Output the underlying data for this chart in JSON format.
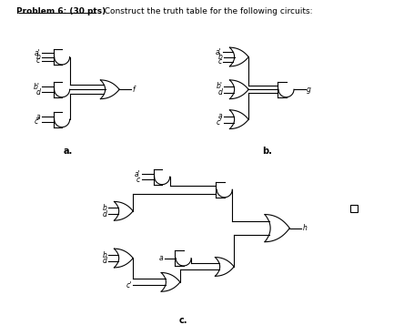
{
  "title1": "Problem 6: (30 pts)",
  "title2": "  Construct the truth table for the following circuits:",
  "bg_color": "#ffffff",
  "line_color": "#000000",
  "circuit_a_label": "a.",
  "circuit_b_label": "b.",
  "circuit_c_label": "c.",
  "output_f": "f",
  "output_g": "g",
  "output_h": "h",
  "lw": 0.8,
  "fs": 5.5,
  "fs_label": 7.0
}
